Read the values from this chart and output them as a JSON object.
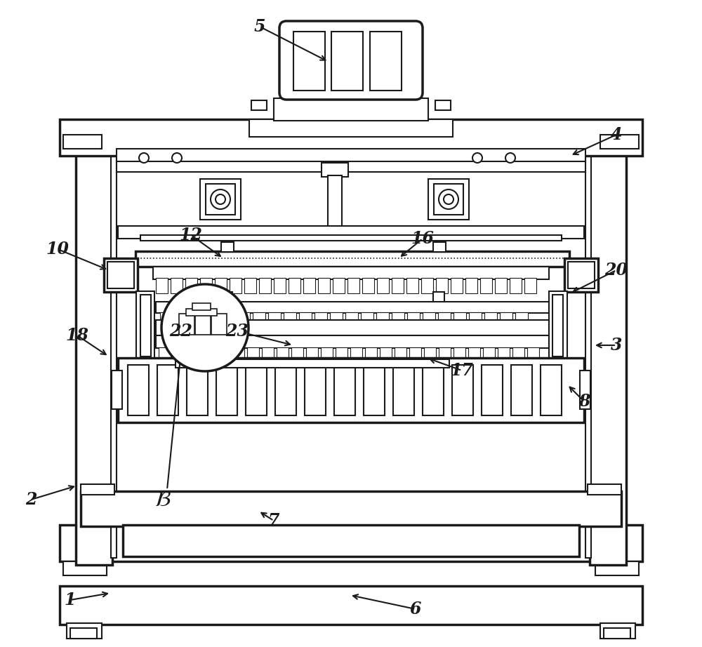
{
  "bg_color": "#ffffff",
  "lc": "#1a1a1a",
  "lw": 1.5,
  "tlw": 2.5,
  "annotations": [
    [
      "5",
      370,
      38,
      468,
      88
    ],
    [
      "4",
      878,
      192,
      812,
      222
    ],
    [
      "10",
      82,
      355,
      155,
      385
    ],
    [
      "12",
      272,
      335,
      318,
      368
    ],
    [
      "16",
      602,
      340,
      568,
      368
    ],
    [
      "18",
      110,
      478,
      155,
      508
    ],
    [
      "20",
      878,
      385,
      812,
      418
    ],
    [
      "3",
      878,
      492,
      845,
      492
    ],
    [
      "22",
      258,
      472,
      298,
      490
    ],
    [
      "23",
      338,
      472,
      418,
      492
    ],
    [
      "17",
      658,
      528,
      608,
      510
    ],
    [
      "8",
      832,
      572,
      808,
      548
    ],
    [
      "2",
      44,
      712,
      110,
      692
    ],
    [
      "7",
      390,
      742,
      368,
      728
    ],
    [
      "6",
      592,
      868,
      498,
      848
    ],
    [
      "1",
      100,
      855,
      158,
      845
    ]
  ]
}
